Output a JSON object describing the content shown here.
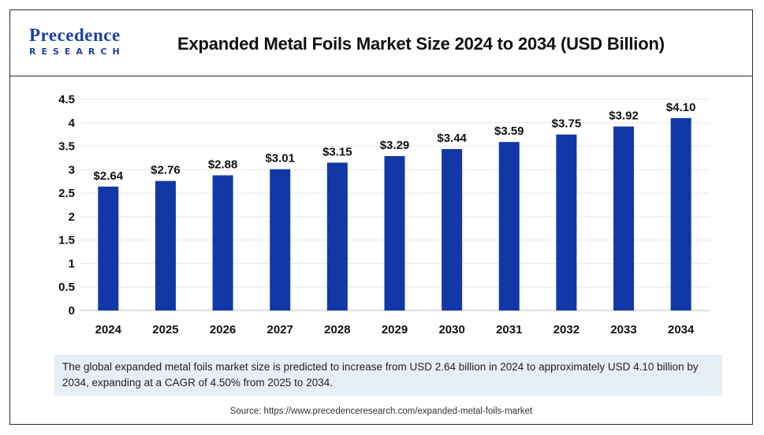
{
  "logo": {
    "top": "Precedence",
    "bottom": "RESEARCH"
  },
  "title": "Expanded Metal Foils Market Size 2024 to 2034 (USD Billion)",
  "description": "The global expanded metal foils market size is predicted to increase from USD 2.64 billion in 2024 to approximately USD 4.10 billion by 2034, expanding at a CAGR of 4.50% from 2025 to 2034.",
  "source": "Source: https://www.precedenceresearch.com/expanded-metal-foils-market",
  "colors": {
    "bar": "#1237a6",
    "brand": "#1f3fa0",
    "description_bg": "#e8eef7"
  },
  "chart_data": {
    "type": "bar",
    "title": "Expanded Metal Foils Market Size 2024 to 2034 (USD Billion)",
    "categories": [
      "2024",
      "2025",
      "2026",
      "2027",
      "2028",
      "2029",
      "2030",
      "2031",
      "2032",
      "2033",
      "2034"
    ],
    "values": [
      2.64,
      2.76,
      2.88,
      3.01,
      3.15,
      3.29,
      3.44,
      3.59,
      3.75,
      3.92,
      4.1
    ],
    "data_labels": [
      "$2.64",
      "$2.76",
      "$2.88",
      "$3.01",
      "$3.15",
      "$3.29",
      "$3.44",
      "$3.59",
      "$3.75",
      "$3.92",
      "$4.10"
    ],
    "ylim": [
      0,
      4.5
    ],
    "yticks": [
      "0",
      "0.5",
      "1",
      "1.5",
      "2",
      "2.5",
      "3",
      "3.5",
      "4",
      "4.5"
    ],
    "ytick_values": [
      0,
      0.5,
      1,
      1.5,
      2,
      2.5,
      3,
      3.5,
      4,
      4.5
    ],
    "xlabel": "",
    "ylabel": "",
    "grid": true,
    "legend": "none"
  }
}
